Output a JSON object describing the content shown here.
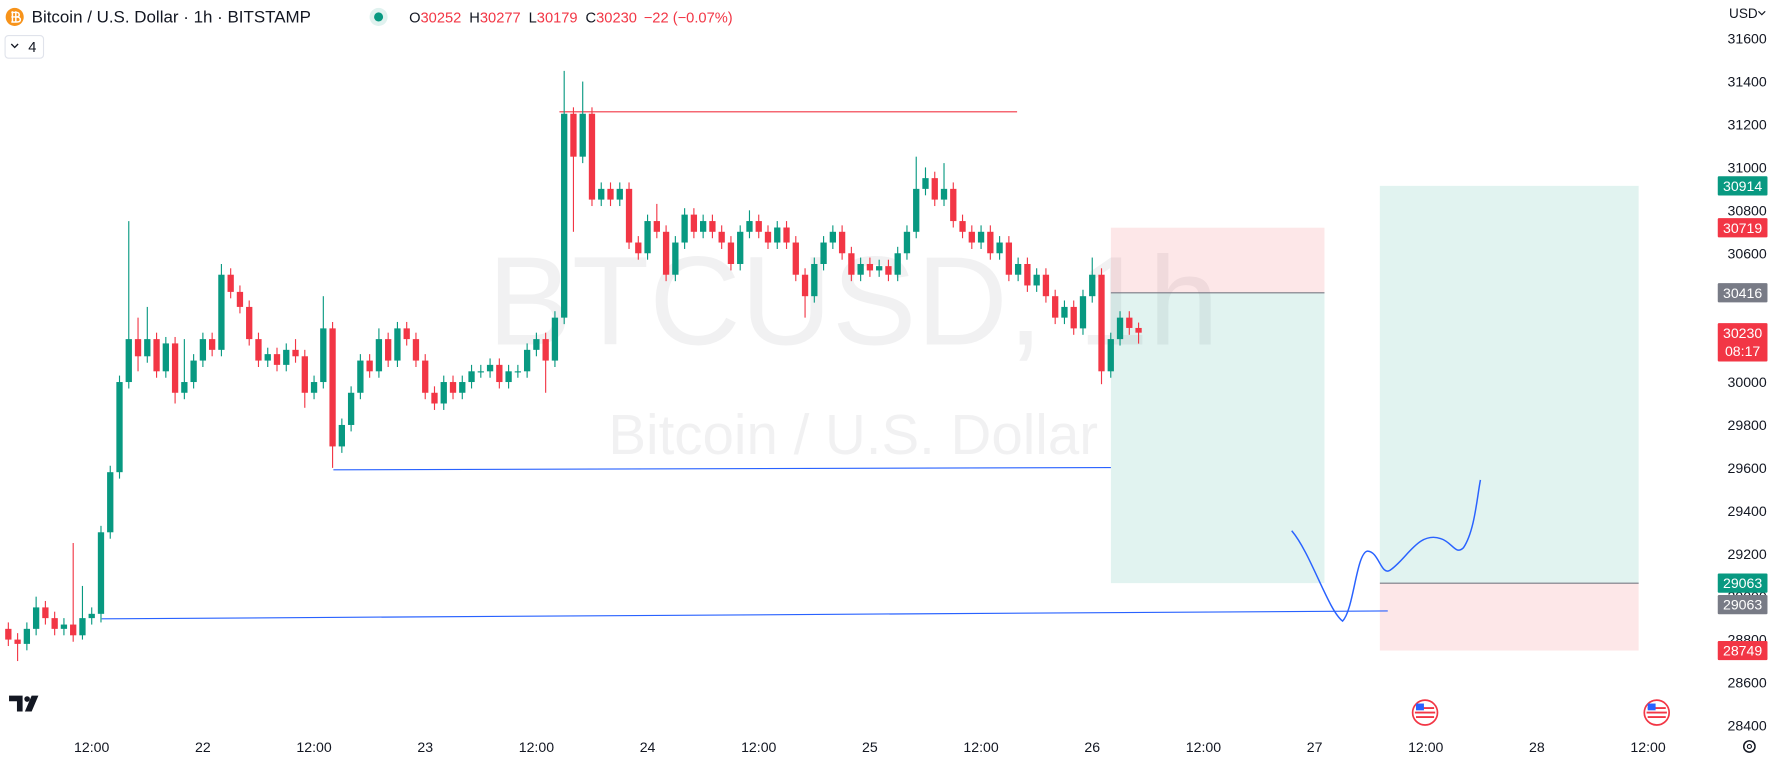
{
  "header": {
    "symbol": "Bitcoin / U.S. Dollar · 1h · BITSTAMP",
    "ohlc_labels": [
      "O",
      "H",
      "L",
      "C"
    ],
    "change": "−22 (−0.07%)",
    "indicators": "4"
  },
  "chart_data": {
    "type": "candlestick",
    "watermark": "BTCUSD, 1h",
    "watermark_subtitle": "Bitcoin / U.S. Dollar",
    "currency": "USD",
    "countdown": "08:17",
    "up_color": "#089981",
    "down_color": "#f23645",
    "x": [
      3,
      4,
      5,
      6,
      7,
      8,
      9,
      10,
      11,
      12,
      13,
      14,
      15,
      16,
      17,
      18,
      19,
      20,
      21,
      22,
      23,
      24,
      25,
      26,
      27,
      28,
      29,
      30,
      31,
      32,
      33,
      34,
      35,
      36,
      37,
      38,
      39,
      40,
      41,
      42,
      43,
      44,
      45,
      46,
      47,
      48,
      49,
      50,
      51,
      52,
      53,
      54,
      55,
      56,
      57,
      58,
      59,
      60,
      61,
      62,
      63,
      64,
      65,
      66,
      67,
      68,
      69,
      70,
      71,
      72,
      73,
      74,
      75,
      76,
      77,
      78,
      79,
      80,
      81,
      82,
      83,
      84,
      85,
      86,
      87,
      88,
      89,
      90,
      91,
      92,
      93,
      94,
      95,
      96,
      97,
      98,
      99,
      100,
      101,
      102,
      103,
      104,
      105,
      106,
      107,
      108,
      109,
      110,
      111,
      112,
      113,
      114,
      115,
      116,
      117,
      118,
      119,
      120,
      121,
      122,
      123,
      124,
      125
    ],
    "open": [
      28850,
      28800,
      28780,
      28850,
      28950,
      28900,
      28850,
      28870,
      28820,
      28900,
      28920,
      29300,
      29580,
      30000,
      30200,
      30120,
      30200,
      30050,
      30180,
      29950,
      30000,
      30100,
      30200,
      30150,
      30500,
      30420,
      30350,
      30200,
      30100,
      30130,
      30080,
      30150,
      30120,
      29950,
      30000,
      30250,
      29700,
      29800,
      29950,
      30100,
      30050,
      30200,
      30100,
      30250,
      30200,
      30100,
      29950,
      29900,
      30000,
      29950,
      30000,
      30050,
      30050,
      30080,
      30000,
      30050,
      30050,
      30150,
      30200,
      30100,
      30300,
      31250,
      31050,
      31250,
      30850,
      30900,
      30850,
      30900,
      30650,
      30600,
      30750,
      30700,
      30500,
      30650,
      30780,
      30700,
      30750,
      30700,
      30650,
      30550,
      30700,
      30750,
      30700,
      30650,
      30720,
      30650,
      30500,
      30400,
      30550,
      30650,
      30700,
      30600,
      30500,
      30550,
      30520,
      30540,
      30500,
      30600,
      30700,
      30900,
      30950,
      30850,
      30900,
      30750,
      30700,
      30650,
      30700,
      30600,
      30650,
      30500,
      30550,
      30450,
      30500,
      30400,
      30300,
      30350,
      30250,
      30400,
      30500,
      30050,
      30200,
      30300,
      30252
    ],
    "high": [
      28880,
      28830,
      28880,
      29000,
      28980,
      28930,
      28900,
      29250,
      29050,
      28950,
      29330,
      29610,
      30030,
      30750,
      30300,
      30350,
      30230,
      30210,
      30210,
      30200,
      30130,
      30230,
      30230,
      30550,
      30530,
      30450,
      30380,
      30230,
      30160,
      30160,
      30180,
      30200,
      30150,
      30030,
      30400,
      30280,
      29830,
      29980,
      30130,
      30130,
      30250,
      30230,
      30280,
      30280,
      30230,
      30130,
      29980,
      30030,
      30030,
      30030,
      30080,
      30080,
      30110,
      30110,
      30080,
      30080,
      30180,
      30230,
      30230,
      30330,
      31450,
      31280,
      31400,
      31280,
      30930,
      30930,
      30930,
      30930,
      30680,
      30780,
      30830,
      30730,
      30680,
      30810,
      30810,
      30780,
      30780,
      30730,
      30680,
      30730,
      30800,
      30780,
      30730,
      30750,
      30750,
      30680,
      30530,
      30580,
      30680,
      30730,
      30730,
      30630,
      30580,
      30580,
      30570,
      30570,
      30630,
      30730,
      31050,
      31000,
      30980,
      31020,
      30930,
      30780,
      30730,
      30730,
      30730,
      30680,
      30680,
      30580,
      30580,
      30530,
      30530,
      30430,
      30380,
      30380,
      30430,
      30580,
      30530,
      30230,
      30330,
      30330,
      30277
    ],
    "low": [
      28770,
      28700,
      28750,
      28820,
      28870,
      28820,
      28820,
      28790,
      28800,
      28870,
      28880,
      29270,
      29550,
      29970,
      30050,
      30090,
      30020,
      30020,
      29900,
      29920,
      29970,
      30070,
      30120,
      30120,
      30390,
      30320,
      30170,
      30070,
      30070,
      30050,
      30050,
      30090,
      29880,
      29920,
      29970,
      29600,
      29670,
      29770,
      29920,
      30020,
      30020,
      30070,
      30070,
      30170,
      30070,
      29920,
      29870,
      29870,
      29920,
      29920,
      29970,
      30020,
      30020,
      29970,
      29970,
      30020,
      30020,
      30120,
      29950,
      30070,
      30270,
      30700,
      31020,
      30820,
      30820,
      30820,
      30820,
      30620,
      30570,
      30570,
      30670,
      30470,
      30470,
      30620,
      30670,
      30670,
      30670,
      30620,
      30520,
      30520,
      30670,
      30670,
      30620,
      30620,
      30620,
      30470,
      30300,
      30370,
      30520,
      30620,
      30570,
      30470,
      30470,
      30490,
      30490,
      30470,
      30470,
      30570,
      30670,
      30870,
      30820,
      30820,
      30720,
      30670,
      30620,
      30620,
      30570,
      30570,
      30470,
      30470,
      30420,
      30420,
      30370,
      30270,
      30270,
      30220,
      30220,
      30370,
      29990,
      30020,
      30170,
      30220,
      30179
    ],
    "close": [
      28800,
      28780,
      28850,
      28950,
      28900,
      28850,
      28870,
      28820,
      28900,
      28920,
      29300,
      29580,
      30000,
      30200,
      30120,
      30200,
      30050,
      30180,
      29950,
      30000,
      30100,
      30200,
      30150,
      30500,
      30420,
      30350,
      30200,
      30100,
      30130,
      30080,
      30150,
      30120,
      29950,
      30000,
      30250,
      29700,
      29800,
      29950,
      30100,
      30050,
      30200,
      30100,
      30250,
      30200,
      30100,
      29950,
      29900,
      30000,
      29950,
      30000,
      30050,
      30050,
      30080,
      30000,
      30050,
      30050,
      30150,
      30200,
      30100,
      30300,
      31250,
      31050,
      31250,
      30850,
      30900,
      30850,
      30900,
      30650,
      30600,
      30750,
      30700,
      30500,
      30650,
      30780,
      30700,
      30750,
      30700,
      30650,
      30550,
      30700,
      30750,
      30700,
      30650,
      30720,
      30650,
      30500,
      30400,
      30550,
      30650,
      30700,
      30600,
      30500,
      30550,
      30520,
      30540,
      30500,
      30600,
      30700,
      30900,
      30950,
      30850,
      30900,
      30750,
      30700,
      30650,
      30700,
      30600,
      30650,
      30500,
      30550,
      30450,
      30500,
      30400,
      30300,
      30350,
      30250,
      30400,
      30500,
      30050,
      30200,
      30300,
      30252,
      30230
    ],
    "xlim": [
      2.1,
      186.3
    ],
    "xticks": [
      {
        "value": 12,
        "label": "12:00"
      },
      {
        "value": 24,
        "label": "22"
      },
      {
        "value": 36,
        "label": "12:00"
      },
      {
        "value": 48,
        "label": "23"
      },
      {
        "value": 60,
        "label": "12:00"
      },
      {
        "value": 72,
        "label": "24"
      },
      {
        "value": 84,
        "label": "12:00"
      },
      {
        "value": 96,
        "label": "25"
      },
      {
        "value": 108,
        "label": "12:00"
      },
      {
        "value": 120,
        "label": "26"
      },
      {
        "value": 132,
        "label": "12:00"
      },
      {
        "value": 144,
        "label": "27"
      },
      {
        "value": 156,
        "label": "12:00"
      },
      {
        "value": 168,
        "label": "28"
      },
      {
        "value": 180,
        "label": "12:00"
      }
    ],
    "ylim": [
      28360,
      31780
    ],
    "yticks": [
      28400,
      28600,
      28800,
      29000,
      29200,
      29400,
      29600,
      29800,
      30000,
      30200,
      30400,
      30600,
      30800,
      31000,
      31200,
      31400,
      31600
    ],
    "price_tags": [
      {
        "value": 30914,
        "color": "#089981"
      },
      {
        "value": 30719,
        "color": "#f23645"
      },
      {
        "value": 30416,
        "color": "#787b86"
      },
      {
        "value": 29063,
        "color": "#089981"
      },
      {
        "value": 29063,
        "color": "#787b86"
      },
      {
        "value": 28749,
        "color": "#f23645"
      }
    ]
  }
}
